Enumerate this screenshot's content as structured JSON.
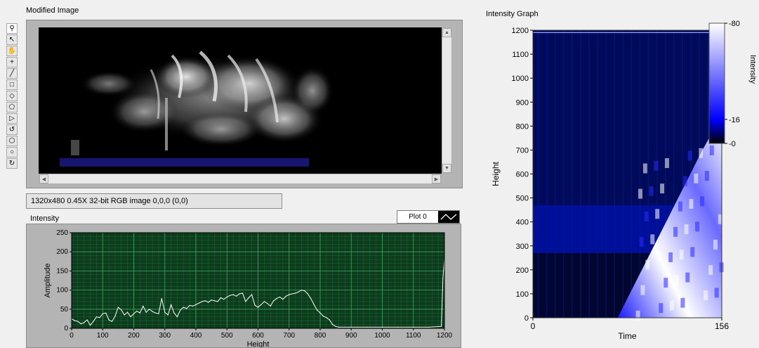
{
  "modified_image": {
    "title": "Modified Image",
    "status": "1320x480 0.45X 32-bit RGB image 0,0,0    (0,0)"
  },
  "toolbar": {
    "tools": [
      {
        "name": "zoom-tool",
        "glyph": "⚲"
      },
      {
        "name": "select-tool",
        "glyph": "↖"
      },
      {
        "name": "pan-tool",
        "glyph": "✋"
      },
      {
        "name": "point-tool",
        "glyph": "+"
      },
      {
        "name": "line-tool",
        "glyph": "╱"
      },
      {
        "name": "rectangle-tool",
        "glyph": "□"
      },
      {
        "name": "rotated-rectangle-tool",
        "glyph": "◇"
      },
      {
        "name": "polygon-tool",
        "glyph": "⬠"
      },
      {
        "name": "freehand-tool",
        "glyph": "▷"
      },
      {
        "name": "freehand-line-tool",
        "glyph": "↺"
      },
      {
        "name": "annulus-tool",
        "glyph": "⬡"
      },
      {
        "name": "oval-tool",
        "glyph": "○"
      },
      {
        "name": "broken-line-tool",
        "glyph": "↻"
      }
    ]
  },
  "intensity_chart": {
    "title": "Intensity",
    "plot_legend": "Plot 0",
    "xlabel": "Height",
    "ylabel": "Amplitude",
    "x_ticks": [
      "0",
      "100",
      "200",
      "300",
      "400",
      "500",
      "600",
      "700",
      "800",
      "900",
      "1000",
      "1100",
      "1200"
    ],
    "y_ticks": [
      "0",
      "50",
      "100",
      "150",
      "200",
      "250"
    ]
  },
  "intensity_graph": {
    "title": "Intensity Graph",
    "xlabel": "Time",
    "ylabel": "Height",
    "x_ticks": [
      "0",
      "156"
    ],
    "y_ticks": [
      "0",
      "100",
      "200",
      "300",
      "400",
      "500",
      "600",
      "700",
      "800",
      "900",
      "1000",
      "1100",
      "1200"
    ],
    "colorbar_label": "Intensity",
    "colorbar_ticks": [
      "80",
      "16",
      "0"
    ]
  },
  "chart_data": [
    {
      "type": "line",
      "title": "",
      "xlabel": "Height",
      "ylabel": "Amplitude",
      "xlim": [
        0,
        1200
      ],
      "ylim": [
        0,
        250
      ],
      "grid": true,
      "series": [
        {
          "name": "Plot 0",
          "color": "#ffffff",
          "x": [
            0,
            10,
            20,
            30,
            40,
            50,
            60,
            70,
            80,
            90,
            100,
            110,
            120,
            130,
            140,
            150,
            160,
            170,
            180,
            190,
            200,
            210,
            220,
            230,
            240,
            250,
            260,
            270,
            280,
            290,
            300,
            310,
            320,
            330,
            340,
            350,
            360,
            370,
            380,
            390,
            400,
            410,
            420,
            430,
            440,
            450,
            460,
            470,
            480,
            490,
            500,
            510,
            520,
            530,
            540,
            550,
            560,
            570,
            580,
            590,
            600,
            610,
            620,
            630,
            640,
            650,
            660,
            670,
            680,
            690,
            700,
            710,
            720,
            730,
            740,
            750,
            760,
            770,
            780,
            790,
            800,
            810,
            820,
            830,
            840,
            850,
            860,
            900,
            950,
            1000,
            1050,
            1100,
            1150,
            1190,
            1195,
            1200
          ],
          "y": [
            25,
            20,
            18,
            12,
            15,
            22,
            8,
            18,
            30,
            28,
            38,
            40,
            22,
            18,
            32,
            55,
            48,
            35,
            42,
            30,
            38,
            45,
            40,
            58,
            42,
            50,
            44,
            40,
            38,
            78,
            42,
            35,
            62,
            40,
            30,
            48,
            55,
            52,
            60,
            58,
            62,
            66,
            70,
            72,
            68,
            74,
            72,
            70,
            80,
            76,
            82,
            86,
            88,
            84,
            90,
            92,
            70,
            80,
            88,
            60,
            55,
            62,
            70,
            65,
            58,
            72,
            78,
            82,
            76,
            84,
            88,
            90,
            92,
            95,
            100,
            98,
            90,
            78,
            62,
            48,
            40,
            32,
            28,
            22,
            10,
            5,
            3,
            3,
            3,
            3,
            3,
            3,
            3,
            5,
            130,
            180
          ]
        }
      ]
    },
    {
      "type": "heatmap",
      "title": "",
      "xlabel": "Time",
      "ylabel": "Height",
      "xlim": [
        0,
        156
      ],
      "ylim": [
        0,
        1200
      ],
      "colorscale": {
        "min": 0,
        "max": 80,
        "ticks": [
          0,
          16,
          80
        ],
        "colors": [
          "#000000",
          "#0000ff",
          "#ffffff"
        ]
      },
      "front_boundary": {
        "time": [
          70,
          80,
          90,
          100,
          110,
          120,
          130,
          140,
          150,
          156
        ],
        "height": [
          0,
          100,
          200,
          300,
          400,
          500,
          600,
          700,
          790,
          840
        ]
      }
    }
  ]
}
